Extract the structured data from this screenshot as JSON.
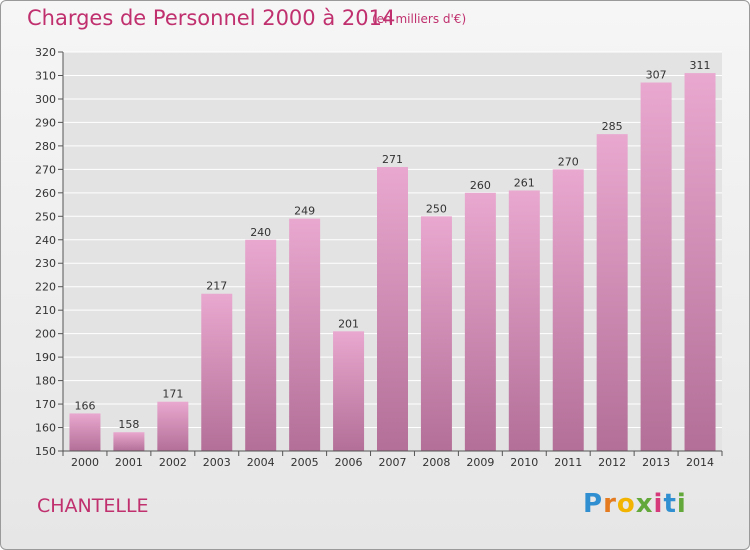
{
  "header": {
    "title": "Charges de Personnel 2000 à 2014",
    "subtitle": "(en milliers d'€)"
  },
  "footer": {
    "commune": "CHANTELLE",
    "logo": "Proxiti"
  },
  "colors": {
    "title": "#c0306e",
    "bar_top": "#e9a8cf",
    "bar_bottom": "#b36f97",
    "grid": "#ffffff"
  },
  "chart_data": {
    "type": "bar",
    "categories": [
      "2000",
      "2001",
      "2002",
      "2003",
      "2004",
      "2005",
      "2006",
      "2007",
      "2008",
      "2009",
      "2010",
      "2011",
      "2012",
      "2013",
      "2014"
    ],
    "values": [
      166,
      158,
      171,
      217,
      240,
      249,
      201,
      271,
      250,
      260,
      261,
      270,
      285,
      307,
      311
    ],
    "ylim": [
      150,
      320
    ],
    "yticks": [
      150,
      160,
      170,
      180,
      190,
      200,
      210,
      220,
      230,
      240,
      250,
      260,
      270,
      280,
      290,
      300,
      310,
      320
    ],
    "grid": true,
    "data_labels": true
  }
}
